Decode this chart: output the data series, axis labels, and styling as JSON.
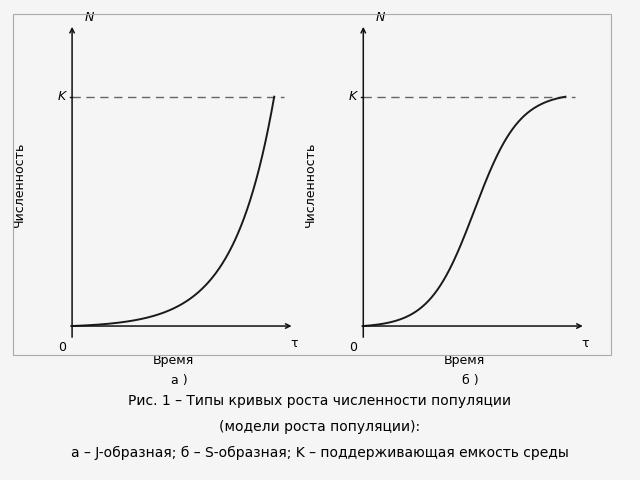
{
  "title_line1": "Рис. 1 – Типы кривых роста численности популяции",
  "title_line2": "(модели роста популяции):",
  "title_line3": "а – J-образная; б – S-образная; K – поддерживающая емкость среды",
  "subplot_a_label": "а )",
  "subplot_b_label": "б )",
  "ylabel": "Численность",
  "xlabel": "Время",
  "N_label": "N",
  "K_label": "K",
  "tau_label": "τ",
  "zero_label": "0",
  "K_level": 0.82,
  "background_color": "#f5f5f5",
  "curve_color": "#1a1a1a",
  "dashed_color": "#666666",
  "axes_color": "#111111",
  "border_color": "#aaaaaa",
  "fontsize_caption": 10,
  "fontsize_labels": 9,
  "fontsize_sublabel": 9
}
